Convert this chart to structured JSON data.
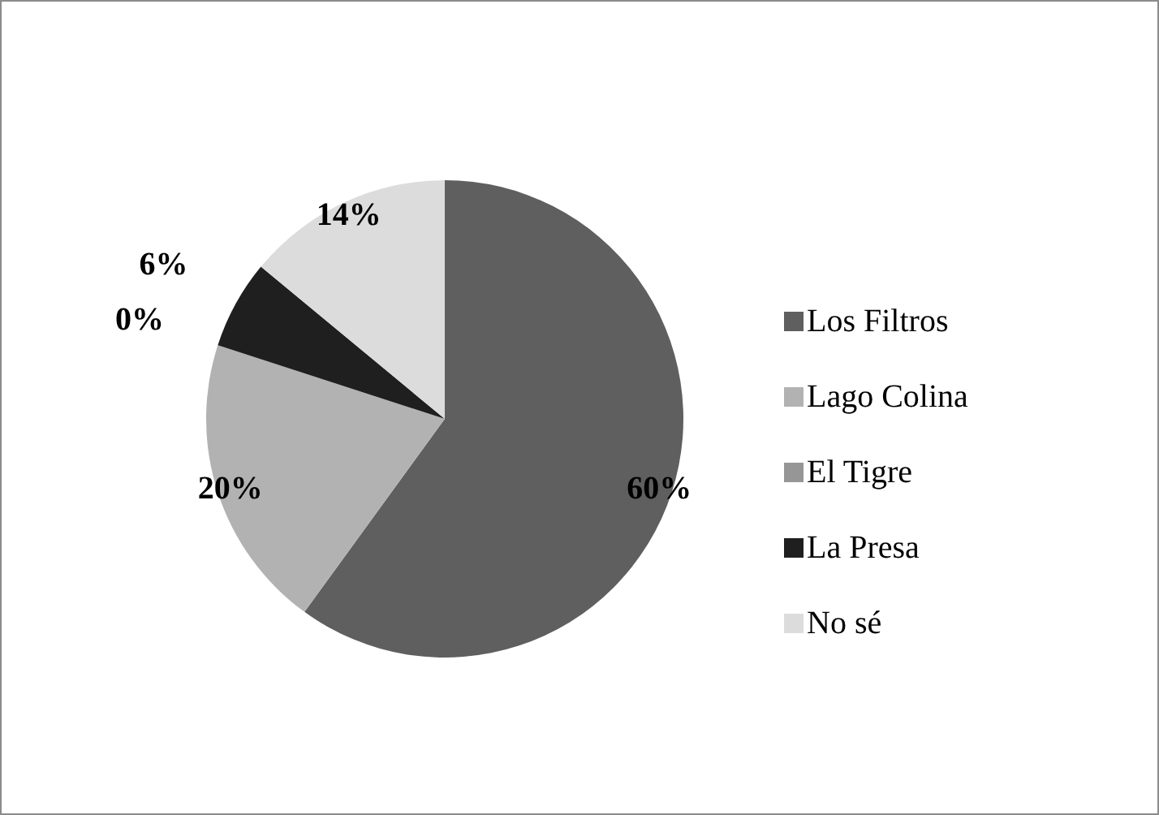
{
  "chart_data": {
    "type": "pie",
    "categories": [
      "Los Filtros",
      "Lago Colina",
      "El Tigre",
      "La Presa",
      "No sé"
    ],
    "values": [
      60,
      20,
      0,
      6,
      14
    ],
    "colors": [
      "#5f5f5f",
      "#b2b2b2",
      "#969696",
      "#1f1f1f",
      "#dcdcdc"
    ],
    "value_labels": [
      "60%",
      "20%",
      "0%",
      "6%",
      "14%"
    ],
    "legend": "right"
  }
}
